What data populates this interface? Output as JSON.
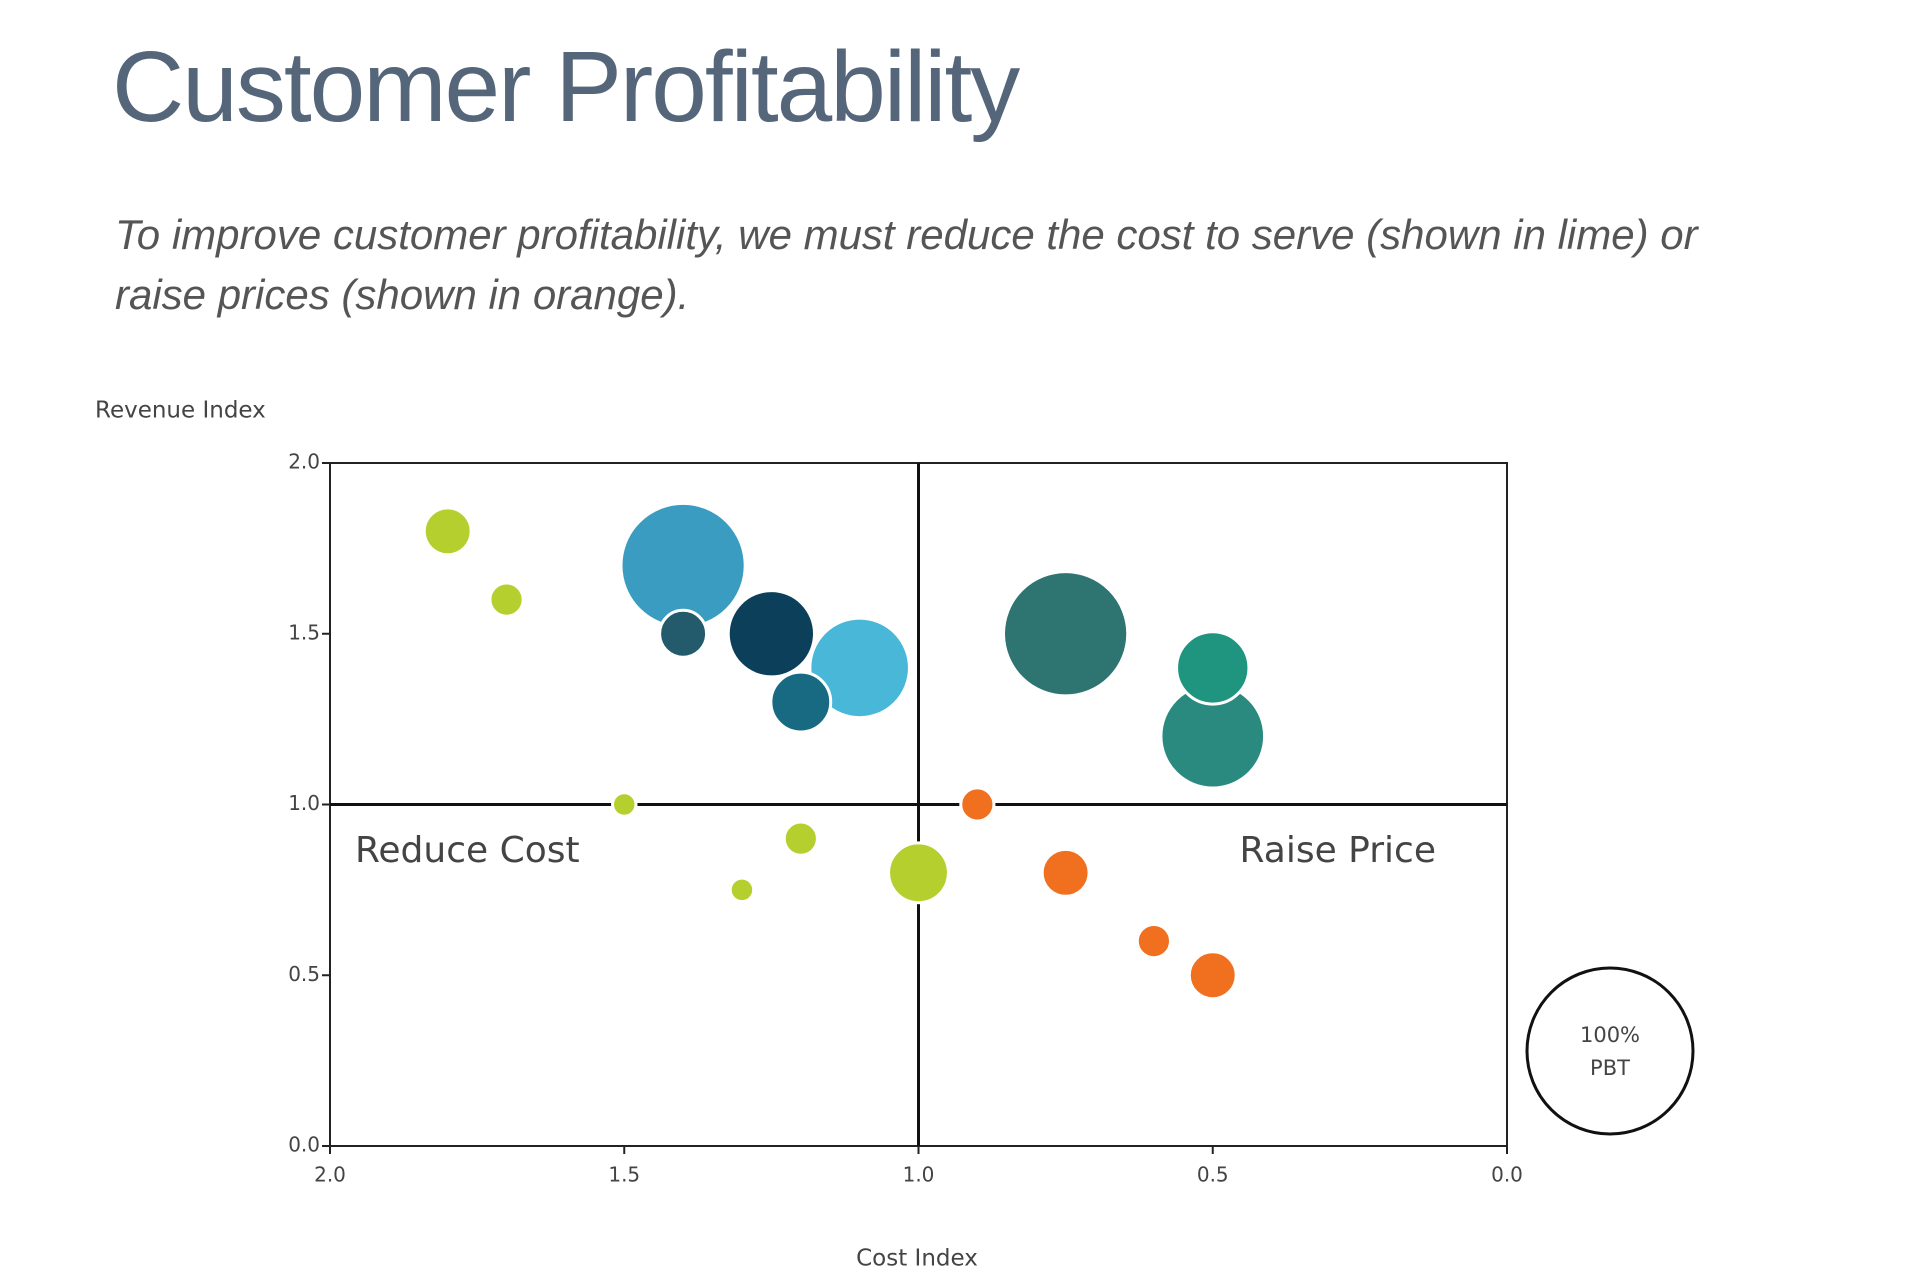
{
  "chart_data": {
    "type": "bubble",
    "title": "Customer Profitability",
    "subtitle": "To improve customer profitability, we must reduce the cost to serve (shown in lime) or raise prices (shown in orange).",
    "x_label": "Cost Index",
    "y_label": "Revenue Index",
    "annotations": [
      "Reduce Cost",
      "Raise Price"
    ],
    "xlim": [
      2,
      0
    ],
    "ylim": [
      0,
      2
    ],
    "xticks": [
      {
        "value": 2,
        "label": "2.0"
      },
      {
        "value": 1.5,
        "label": "1.5"
      },
      {
        "value": 1,
        "label": "1.0"
      },
      {
        "value": 0.5,
        "label": "0.5"
      },
      {
        "value": 0,
        "label": "0.0"
      }
    ],
    "yticks": [
      {
        "value": 0,
        "label": "0.0"
      },
      {
        "value": 0.5,
        "label": "0.5"
      },
      {
        "value": 1,
        "label": "1.0"
      },
      {
        "value": 1.5,
        "label": "1.5"
      },
      {
        "value": 2,
        "label": "2.0"
      }
    ],
    "quadrant_lines": {
      "x": 1,
      "y": 1
    },
    "x": [
      1.8,
      1.7,
      1.5,
      1.2,
      1.3,
      1.0,
      0.9,
      0.75,
      0.6,
      0.5,
      1.4,
      1.4,
      1.25,
      1.1,
      1.2,
      0.75,
      0.5,
      0.5
    ],
    "y": [
      1.8,
      1.6,
      1.0,
      0.9,
      0.75,
      0.8,
      1.0,
      0.8,
      0.6,
      0.5,
      1.7,
      1.5,
      1.5,
      1.4,
      1.3,
      1.5,
      1.2,
      1.4
    ],
    "size": [
      8,
      4,
      2,
      4,
      2,
      13,
      4,
      8,
      4,
      8,
      56,
      8,
      27,
      36,
      13,
      56,
      39,
      19
    ],
    "colors": [
      "#b5cf2e",
      "#b5cf2e",
      "#b5cf2e",
      "#b5cf2e",
      "#b5cf2e",
      "#b5cf2e",
      "#f07020",
      "#f07020",
      "#f07020",
      "#f07020",
      "#3a9cc0",
      "#235a6c",
      "#0c3f5a",
      "#49b7d8",
      "#176a82",
      "#2e7470",
      "#2b8a80",
      "#1f957f"
    ],
    "size_legend": {
      "value": 100,
      "label": "100%",
      "caption": "PBT"
    }
  }
}
